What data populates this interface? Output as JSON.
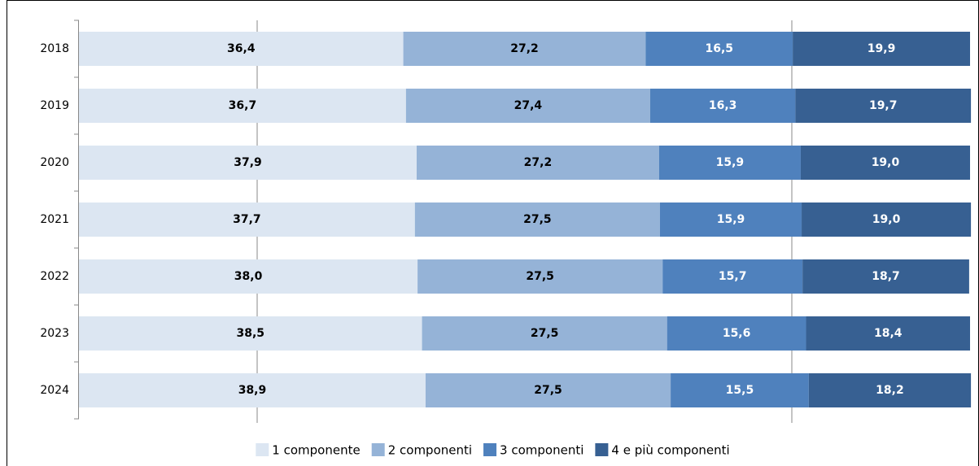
{
  "chart_data": {
    "type": "bar",
    "orientation": "horizontal",
    "stacked": true,
    "categories": [
      "2018",
      "2019",
      "2020",
      "2021",
      "2022",
      "2023",
      "2024"
    ],
    "xlim": [
      0,
      100
    ],
    "xgrid": [
      20,
      80
    ],
    "series": [
      {
        "name": "1 componente",
        "color": "#dce6f2",
        "label_color": "#000000",
        "values": [
          36.4,
          36.7,
          37.9,
          37.7,
          38.0,
          38.5,
          38.9
        ],
        "value_labels": [
          "36,4",
          "36,7",
          "37,9",
          "37,7",
          "38,0",
          "38,5",
          "38,9"
        ]
      },
      {
        "name": "2 componenti",
        "color": "#95b3d7",
        "label_color": "#000000",
        "values": [
          27.2,
          27.4,
          27.2,
          27.5,
          27.5,
          27.5,
          27.5
        ],
        "value_labels": [
          "27,2",
          "27,4",
          "27,2",
          "27,5",
          "27,5",
          "27,5",
          "27,5"
        ]
      },
      {
        "name": "3 componenti",
        "color": "#4f81bd",
        "label_color": "#ffffff",
        "values": [
          16.5,
          16.3,
          15.9,
          15.9,
          15.7,
          15.6,
          15.5
        ],
        "value_labels": [
          "16,5",
          "16,3",
          "15,9",
          "15,9",
          "15,7",
          "15,6",
          "15,5"
        ]
      },
      {
        "name": "4 e più componenti",
        "color": "#376092",
        "label_color": "#ffffff",
        "values": [
          19.9,
          19.7,
          19.0,
          19.0,
          18.7,
          18.4,
          18.2
        ],
        "value_labels": [
          "19,9",
          "19,7",
          "19,0",
          "19,0",
          "18,7",
          "18,4",
          "18,2"
        ]
      }
    ],
    "legend": "bottom"
  }
}
